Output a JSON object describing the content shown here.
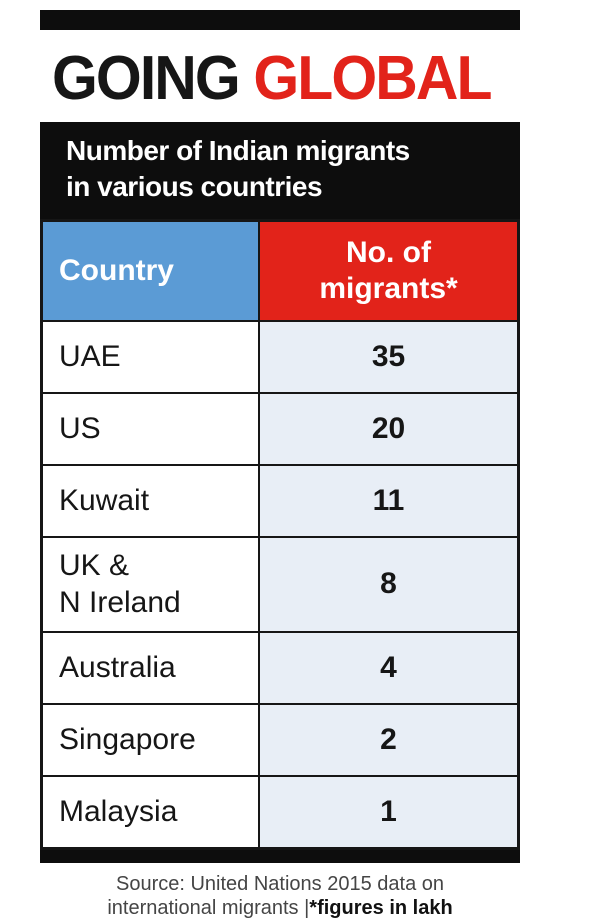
{
  "headline": {
    "word_black": "GOING",
    "word_red": "GLOBAL"
  },
  "banner": {
    "line1": "Number of Indian migrants",
    "line2": "in various countries"
  },
  "table": {
    "col1_header": "Country",
    "col2_header": "No. of\nmigrants*",
    "rows": [
      {
        "label": "UAE",
        "value": "35"
      },
      {
        "label": "US",
        "value": "20"
      },
      {
        "label": "Kuwait",
        "value": "11"
      },
      {
        "label": "UK &\nN Ireland",
        "value": "8"
      },
      {
        "label": "Australia",
        "value": "4"
      },
      {
        "label": "Singapore",
        "value": "2"
      },
      {
        "label": "Malaysia",
        "value": "1"
      }
    ]
  },
  "source": {
    "line1": "Source: United Nations 2015 data on",
    "line2_normal": "international migrants |",
    "line2_bold": "*figures in lakh"
  },
  "colors": {
    "red": "#e2231a",
    "blue": "#5b9bd5",
    "row_tint": "#e8eef6",
    "ink": "#161616"
  },
  "chart_data": {
    "type": "table",
    "title": "GOING GLOBAL",
    "subtitle": "Number of Indian migrants in various countries",
    "columns": [
      "Country",
      "No. of migrants*"
    ],
    "categories": [
      "UAE",
      "US",
      "Kuwait",
      "UK & N Ireland",
      "Australia",
      "Singapore",
      "Malaysia"
    ],
    "values": [
      35,
      20,
      11,
      8,
      4,
      2,
      1
    ],
    "unit": "lakh",
    "source": "Source: United Nations 2015 data on international migrants | *figures in lakh"
  }
}
